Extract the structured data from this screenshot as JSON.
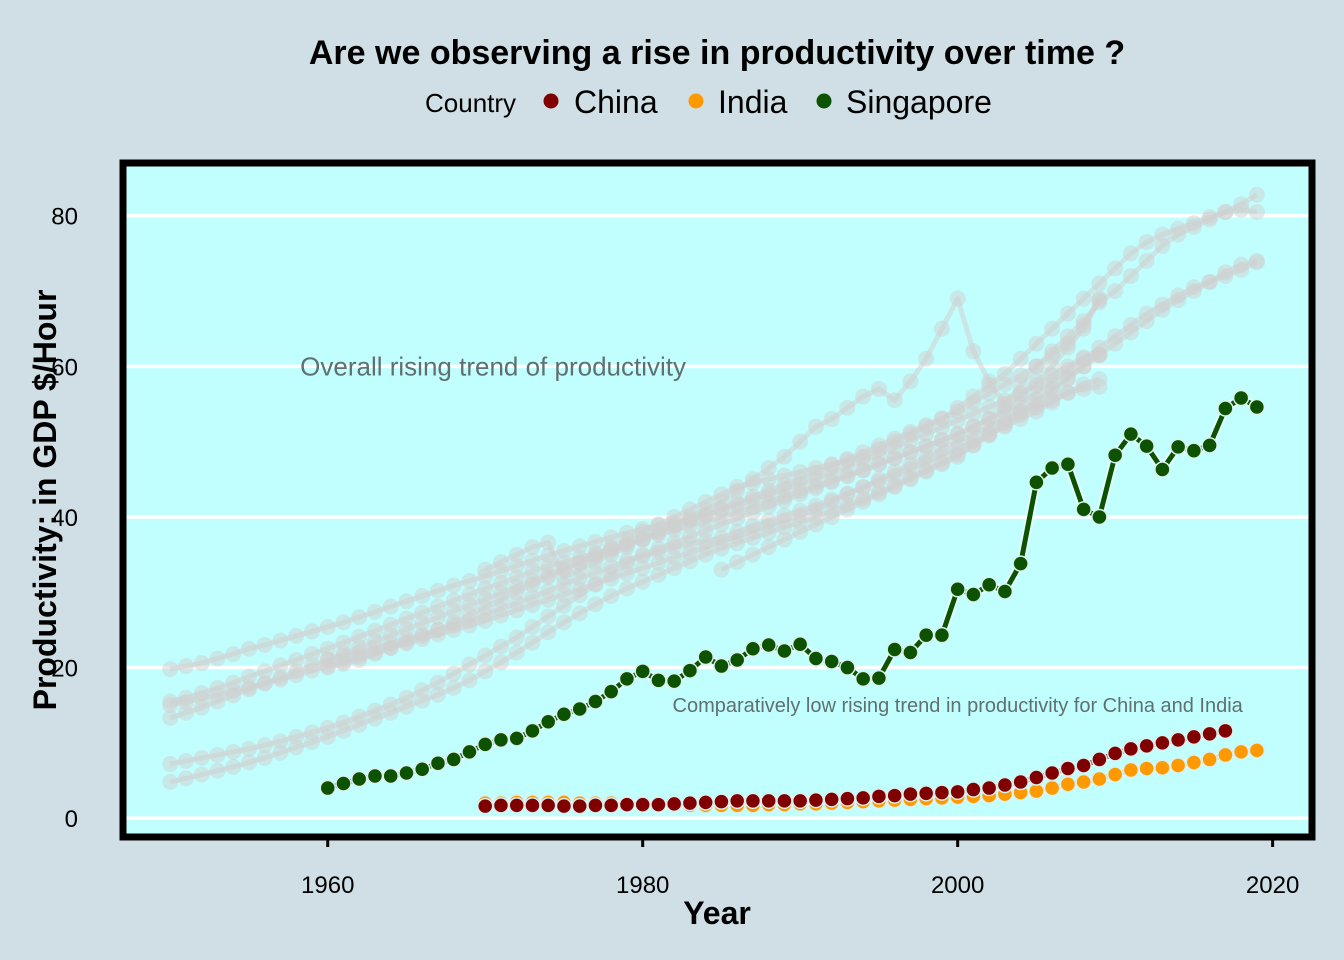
{
  "chart_data": {
    "type": "line",
    "title": "Are we observing a rise in productivity over time ?",
    "xlabel": "Year",
    "ylabel": "Productivity: in GDP $/Hour",
    "xlim": [
      1947,
      2022.5
    ],
    "ylim": [
      -2.5,
      87
    ],
    "x_ticks": [
      1960,
      1980,
      2000,
      2020
    ],
    "y_ticks": [
      0,
      20,
      40,
      60,
      80
    ],
    "grid": "horizontal major lines only",
    "legend": {
      "title": "Country",
      "placement": "top",
      "entries": [
        "China",
        "India",
        "Singapore"
      ]
    },
    "annotations": [
      {
        "text": "Overall rising trend of productivity",
        "x": 1970.5,
        "y": 60
      },
      {
        "text": "Comparatively low rising trend in productivity for China and India",
        "x": 2000,
        "y": 15
      }
    ],
    "colors": {
      "China": "#800000",
      "India": "#ff9900",
      "Singapore": "#0c5200",
      "background_countries": "#d0d0d0",
      "panel": "#c1ffff",
      "page": "#cfdfe5"
    },
    "series": [
      {
        "name": "China",
        "x_start": 1970,
        "values": [
          1.6,
          1.7,
          1.7,
          1.7,
          1.7,
          1.6,
          1.6,
          1.7,
          1.7,
          1.8,
          1.8,
          1.8,
          1.9,
          2.0,
          2.1,
          2.2,
          2.3,
          2.3,
          2.3,
          2.3,
          2.3,
          2.4,
          2.5,
          2.6,
          2.7,
          2.9,
          3.0,
          3.2,
          3.3,
          3.4,
          3.5,
          3.8,
          4.0,
          4.4,
          4.8,
          5.4,
          6.0,
          6.6,
          7.0,
          7.8,
          8.6,
          9.2,
          9.6,
          10.0,
          10.4,
          10.8,
          11.2,
          11.6
        ]
      },
      {
        "name": "India",
        "x_start": 1970,
        "values": [
          2.0,
          2.0,
          2.1,
          2.1,
          2.1,
          2.1,
          2.0,
          2.0,
          2.0,
          1.9,
          1.9,
          1.8,
          1.8,
          1.7,
          1.7,
          1.7,
          1.7,
          1.7,
          1.8,
          1.8,
          1.9,
          1.9,
          2.0,
          2.1,
          2.2,
          2.3,
          2.4,
          2.5,
          2.6,
          2.7,
          2.8,
          2.9,
          3.0,
          3.2,
          3.4,
          3.6,
          4.0,
          4.5,
          4.8,
          5.2,
          5.8,
          6.4,
          6.6,
          6.7,
          7.0,
          7.4,
          7.8,
          8.4,
          8.8,
          9.0
        ]
      },
      {
        "name": "Singapore",
        "x_start": 1960,
        "values": [
          4.0,
          4.6,
          5.2,
          5.6,
          5.6,
          6.0,
          6.5,
          7.3,
          7.8,
          8.8,
          9.8,
          10.4,
          10.6,
          11.6,
          12.8,
          13.8,
          14.5,
          15.5,
          16.8,
          18.5,
          19.5,
          18.3,
          18.2,
          19.6,
          21.4,
          20.2,
          21.0,
          22.5,
          23.0,
          22.2,
          23.1,
          21.2,
          20.8,
          20.0,
          18.5,
          18.6,
          22.4,
          22.0,
          24.3,
          24.3,
          30.4,
          29.7,
          31.0,
          30.1,
          33.8,
          44.6,
          46.5,
          47.0,
          41.0,
          40.0,
          48.2,
          51.0,
          49.4,
          46.3,
          49.3,
          48.8,
          49.5,
          54.4,
          55.8,
          54.6
        ]
      }
    ],
    "background_series": [
      {
        "x_start": 1950,
        "values": [
          19.8,
          20.2,
          20.6,
          21.2,
          21.8,
          22.5,
          23.0,
          23.6,
          24.2,
          24.8,
          25.4,
          26.0,
          26.7,
          27.4,
          28.1,
          28.8,
          29.5,
          30.2,
          30.9,
          31.5,
          32.1,
          32.8,
          33.5,
          34.2,
          34.9,
          35.5,
          36.1,
          36.7,
          37.3,
          37.9,
          38.4,
          38.9,
          39.3,
          39.7,
          40.2,
          40.9,
          41.6,
          42.3,
          43.0,
          43.7,
          44.4,
          45.1,
          45.9,
          46.7,
          47.5,
          48.3,
          49.2,
          50.1,
          51.0,
          51.9,
          52.8,
          53.7,
          54.6,
          55.5,
          56.4,
          57.5,
          58.8,
          60.0,
          61.2,
          61.5
        ]
      },
      {
        "x_start": 1950,
        "values": [
          15.5,
          16.0,
          16.6,
          17.3,
          18.0,
          18.8,
          19.5,
          20.3,
          21.0,
          21.8,
          22.5,
          23.3,
          24.1,
          24.9,
          25.7,
          26.5,
          27.3,
          28.1,
          28.9,
          29.7,
          30.5,
          31.2,
          32.0,
          32.8,
          33.5,
          34.0,
          34.6,
          35.2,
          35.8,
          36.4,
          37.0,
          37.6,
          38.2,
          38.8,
          39.4,
          40.0,
          40.6,
          41.3,
          42.0,
          42.7,
          43.4,
          44.1,
          44.8,
          45.5,
          46.2,
          47.0,
          47.8,
          48.6,
          49.4,
          50.2,
          51.0,
          52.0,
          53.0,
          54.5,
          56.0,
          58.0,
          60.0,
          62.5,
          65.0,
          68.8
        ]
      },
      {
        "x_start": 1950,
        "values": [
          13.3,
          14.0,
          14.7,
          15.5,
          16.3,
          17.1,
          17.9,
          18.7,
          19.5,
          20.3,
          21.1,
          21.9,
          22.7,
          23.5,
          24.3,
          25.1,
          25.9,
          26.7,
          27.5,
          28.3,
          29.1,
          29.9,
          30.7,
          31.5,
          32.3,
          33.1,
          33.9,
          34.7,
          35.5,
          36.3,
          37.1,
          37.9,
          38.7,
          39.5,
          40.3,
          41.1,
          41.9,
          42.7,
          43.5,
          44.3,
          45.1,
          45.9,
          46.8,
          47.7,
          48.6,
          49.5,
          50.4,
          51.3,
          52.2,
          53.1,
          54.0,
          55.2,
          56.4,
          57.6,
          58.8,
          60.0,
          61.5,
          63.0,
          65.5,
          69.0
        ]
      },
      {
        "x_start": 1950,
        "values": [
          15.0,
          15.4,
          15.9,
          16.4,
          16.9,
          17.4,
          17.9,
          18.4,
          19.0,
          19.6,
          20.2,
          20.8,
          21.4,
          22.0,
          22.6,
          23.2,
          23.8,
          24.4,
          25.0,
          25.6,
          26.2,
          26.9,
          27.6,
          28.3,
          29.0,
          29.7,
          30.4,
          31.1,
          31.8,
          32.5,
          33.2,
          33.9,
          34.6,
          35.3,
          36.0,
          36.7,
          37.4,
          38.1,
          38.8,
          39.5,
          40.2,
          41.0,
          42.0,
          43.0,
          44.0,
          45.0,
          46.0,
          47.0,
          48.0,
          49.0,
          50.0,
          51.0,
          52.0,
          53.0,
          54.0,
          54.5,
          55.5,
          56.5,
          57.0,
          57.3
        ]
      },
      {
        "x_start": 1950,
        "values": [
          7.2,
          7.6,
          8.0,
          8.4,
          8.8,
          9.2,
          9.7,
          10.2,
          10.8,
          11.4,
          12.0,
          12.7,
          13.5,
          14.3,
          15.1,
          16.0,
          17.0,
          18.0,
          19.2,
          20.4,
          21.6,
          22.8,
          24.0,
          25.4,
          26.8,
          28.2,
          29.6,
          31.0,
          32.4,
          33.8,
          34.8,
          35.3,
          36.0,
          36.5,
          36.8,
          37.2,
          38.0,
          38.8,
          39.5,
          40.2,
          40.8,
          41.5,
          42.3,
          43.1,
          43.9,
          44.7,
          45.5,
          46.4,
          47.3,
          48.2,
          49.1,
          50.0,
          51.0,
          52.0,
          53.0,
          54.0,
          55.2,
          56.5,
          57.6,
          58.3
        ]
      },
      {
        "x_start": 1950,
        "values": [
          4.8,
          5.3,
          5.8,
          6.3,
          6.8,
          7.4,
          8.0,
          8.7,
          9.4,
          10.1,
          10.8,
          11.6,
          12.4,
          13.2,
          14.0,
          14.8,
          15.6,
          16.4,
          17.3,
          18.3,
          19.5,
          20.7,
          22.0,
          23.3,
          24.7,
          26.0,
          27.2,
          28.4,
          29.5,
          30.5,
          31.4,
          32.3,
          33.2,
          34.1,
          35.0,
          35.8,
          36.5,
          37.2,
          37.9,
          38.6,
          39.3,
          40.0,
          40.8,
          41.6,
          42.4,
          43.3,
          44.2,
          45.2,
          46.2,
          47.2,
          48.3,
          49.5,
          50.8,
          52.2,
          53.6,
          55.0,
          56.6,
          58.3,
          60.0,
          61.5
        ]
      },
      {
        "x_start": 1960,
        "values": [
          21.0,
          21.5,
          22.0,
          22.6,
          23.2,
          23.8,
          24.4,
          25.0,
          25.6,
          26.2,
          27.0,
          27.8,
          28.6,
          29.4,
          30.2,
          31.0,
          31.8,
          32.6,
          33.4,
          34.2,
          35.0,
          35.8,
          36.6,
          37.4,
          38.2,
          39.0,
          39.8,
          40.6,
          41.4,
          42.2,
          43.0,
          43.8,
          44.6,
          45.4,
          46.2,
          47.0,
          47.8,
          48.6,
          49.4,
          50.2,
          51.0,
          52.0,
          53.0,
          54.0,
          55.0,
          56.5,
          58.0,
          59.5,
          61.0,
          62.5,
          64.0,
          65.5,
          67.0,
          68.2,
          69.4,
          70.5,
          71.2,
          72.0,
          72.8,
          73.8
        ]
      },
      {
        "x_start": 1970,
        "values": [
          33.0,
          34.0,
          35.0,
          36.0,
          36.6,
          32.0,
          33.0,
          34.0,
          35.0,
          36.0,
          37.0,
          38.0,
          39.0,
          40.0,
          41.0,
          42.0,
          43.5,
          45.0,
          46.5,
          48.0,
          50.0,
          52.0,
          53.0,
          54.5,
          56.0,
          57.0,
          55.5,
          58.0,
          61.0,
          65.0,
          69.0,
          62.0,
          58.0,
          55.0,
          57.5,
          60.0,
          62.0,
          64.0,
          66.0,
          68.5,
          70.0,
          72.0,
          74.0,
          76.0,
          77.5,
          78.5,
          79.5,
          80.5,
          81.5,
          82.8
        ]
      },
      {
        "x_start": 1960,
        "values": [
          20.0,
          20.5,
          21.0,
          21.8,
          22.6,
          23.4,
          24.2,
          25.0,
          26.0,
          27.0,
          28.0,
          29.0,
          30.0,
          31.0,
          32.0,
          33.0,
          34.0,
          35.0,
          36.0,
          37.0,
          38.0,
          39.0,
          40.0,
          41.0,
          42.0,
          43.0,
          44.0,
          44.5,
          45.0,
          45.5,
          46.0,
          46.5,
          47.0,
          47.5,
          48.0,
          49.0,
          50.0,
          51.0,
          52.0,
          53.0,
          54.5,
          56.0,
          57.5,
          59.0,
          61.0,
          63.0,
          65.0,
          67.0,
          69.0,
          71.0,
          73.0,
          75.0,
          76.5,
          77.5,
          78.3,
          79.0,
          79.8,
          80.5,
          80.8,
          80.5
        ]
      },
      {
        "x_start": 1985,
        "values": [
          33.0,
          34.0,
          35.0,
          36.0,
          37.0,
          38.0,
          39.0,
          40.0,
          41.0,
          42.0,
          43.0,
          44.0,
          45.0,
          46.0,
          47.0,
          48.0,
          49.5,
          51.0,
          52.5,
          54.0,
          55.5,
          57.0,
          58.5,
          60.0,
          61.5,
          63.0,
          64.5,
          66.0,
          67.5,
          68.8,
          70.0,
          71.2,
          72.5,
          73.5,
          74.0
        ]
      }
    ]
  }
}
